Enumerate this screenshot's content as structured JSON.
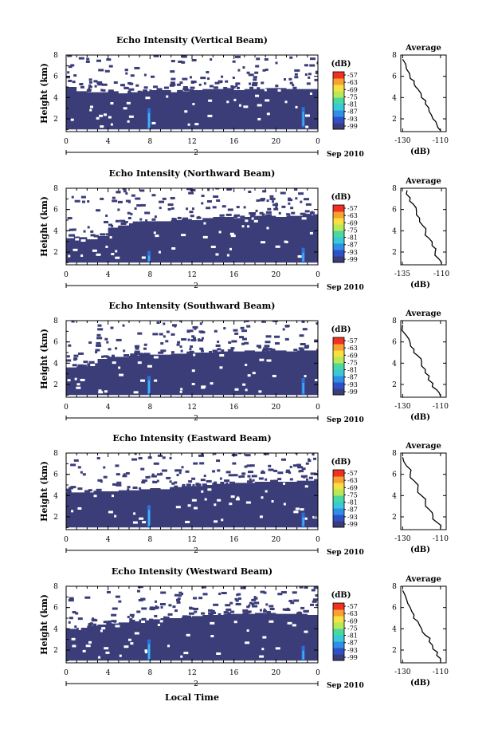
{
  "figure": {
    "ylabel": "Height (km)",
    "xlabel": "Local Time",
    "date_label": "Sep 2010",
    "day_label": "2",
    "colorbar_unit": "(dB)",
    "avg_title": "Average",
    "avg_xlabel": "(dB)"
  },
  "colors": {
    "background": "#3a3d78",
    "echo_bright": "#3fb6f0",
    "colormap": [
      "#3a3d78",
      "#3050c8",
      "#2f8fe8",
      "#38c8d8",
      "#48d8a0",
      "#b8e858",
      "#f8e040",
      "#f8a030",
      "#f03020"
    ]
  },
  "chart_data": [
    {
      "type": "heatmap",
      "title": "Echo Intensity (Vertical Beam)",
      "x_ticks": [
        "0",
        "4",
        "8",
        "12",
        "16",
        "20",
        "0"
      ],
      "y_ticks": [
        "2",
        "4",
        "6",
        "8"
      ],
      "xlim": [
        0,
        24
      ],
      "ylim": [
        0.8,
        8
      ],
      "colorbar_ticks": [
        "-57",
        "-63",
        "-69",
        "-75",
        "-81",
        "-87",
        "-93",
        "-99"
      ],
      "boundary_km": [
        5.0,
        4.6,
        4.5,
        4.5,
        4.6,
        4.4,
        4.5,
        4.6,
        4.7,
        4.7,
        4.5,
        4.6,
        4.7,
        4.8,
        4.8,
        4.9,
        4.7,
        4.8,
        4.8,
        4.9,
        4.9,
        4.8,
        4.8,
        4.8
      ],
      "echo_columns": [
        {
          "time": 7.9,
          "top_km": 3.0,
          "bottom_km": 1.0
        },
        {
          "time": 22.6,
          "top_km": 3.1,
          "bottom_km": 1.2
        }
      ],
      "profile": {
        "x": [
          -110,
          -112,
          -114,
          -116,
          -118,
          -120,
          -122,
          -124,
          -126,
          -128,
          -130
        ],
        "y": [
          0.9,
          1.5,
          2.0,
          2.7,
          3.4,
          4.0,
          4.8,
          5.3,
          5.8,
          6.7,
          7.6
        ],
        "xlim": [
          -131,
          -107
        ],
        "ylim": [
          0.8,
          8
        ],
        "x_ticks": [
          "-130",
          "-110"
        ],
        "y_ticks": [
          "2",
          "4",
          "6",
          "8"
        ]
      }
    },
    {
      "type": "heatmap",
      "title": "Echo Intensity (Northward Beam)",
      "x_ticks": [
        "0",
        "4",
        "8",
        "12",
        "16",
        "20",
        "0"
      ],
      "y_ticks": [
        "2",
        "4",
        "6",
        "8"
      ],
      "xlim": [
        0,
        24
      ],
      "ylim": [
        0.8,
        8
      ],
      "colorbar_ticks": [
        "-57",
        "-63",
        "-69",
        "-75",
        "-81",
        "-87",
        "-93",
        "-99"
      ],
      "boundary_km": [
        3.3,
        3.4,
        3.2,
        3.5,
        4.3,
        4.5,
        4.7,
        4.9,
        4.9,
        4.9,
        5.0,
        5.1,
        5.0,
        5.2,
        5.3,
        5.3,
        5.2,
        5.3,
        5.4,
        5.4,
        5.3,
        5.4,
        5.4,
        5.4
      ],
      "echo_columns": [
        {
          "time": 7.9,
          "top_km": 2.1,
          "bottom_km": 1.0
        },
        {
          "time": 22.6,
          "top_km": 2.4,
          "bottom_km": 1.0
        }
      ],
      "profile": {
        "x": [
          -110,
          -112,
          -114,
          -116,
          -118,
          -120,
          -122,
          -124,
          -126,
          -128,
          -130,
          -132
        ],
        "y": [
          0.9,
          1.4,
          2.0,
          2.6,
          3.3,
          3.9,
          4.5,
          5.2,
          5.8,
          6.5,
          7.1,
          7.8
        ],
        "xlim": [
          -136,
          -107
        ],
        "ylim": [
          0.8,
          8
        ],
        "x_ticks": [
          "-135",
          "-110"
        ],
        "y_ticks": [
          "2",
          "4",
          "6",
          "8"
        ]
      }
    },
    {
      "type": "heatmap",
      "title": "Echo Intensity (Southward Beam)",
      "x_ticks": [
        "0",
        "4",
        "8",
        "12",
        "16",
        "20",
        "0"
      ],
      "y_ticks": [
        "2",
        "4",
        "6",
        "8"
      ],
      "xlim": [
        0,
        24
      ],
      "ylim": [
        0.8,
        8
      ],
      "colorbar_ticks": [
        "-57",
        "-63",
        "-69",
        "-75",
        "-81",
        "-87",
        "-93",
        "-99"
      ],
      "boundary_km": [
        3.6,
        3.7,
        4.0,
        4.4,
        4.6,
        4.6,
        4.7,
        4.8,
        4.8,
        4.8,
        4.9,
        4.9,
        5.0,
        5.0,
        5.1,
        5.1,
        5.1,
        5.2,
        5.1,
        5.2,
        5.2,
        5.1,
        5.2,
        5.2
      ],
      "echo_columns": [
        {
          "time": 7.9,
          "top_km": 2.8,
          "bottom_km": 1.0
        },
        {
          "time": 22.6,
          "top_km": 2.6,
          "bottom_km": 1.0
        }
      ],
      "profile": {
        "x": [
          -110,
          -112,
          -114,
          -116,
          -118,
          -120,
          -122,
          -124,
          -126,
          -128,
          -130
        ],
        "y": [
          0.9,
          1.5,
          2.1,
          2.8,
          3.4,
          4.1,
          4.7,
          5.3,
          5.9,
          6.6,
          7.6
        ],
        "xlim": [
          -131,
          -107
        ],
        "ylim": [
          0.8,
          8
        ],
        "x_ticks": [
          "-130",
          "-110"
        ],
        "y_ticks": [
          "2",
          "4",
          "6",
          "8"
        ]
      }
    },
    {
      "type": "heatmap",
      "title": "Echo Intensity (Eastward Beam)",
      "x_ticks": [
        "0",
        "4",
        "8",
        "12",
        "16",
        "20",
        "0"
      ],
      "y_ticks": [
        "2",
        "4",
        "6",
        "8"
      ],
      "xlim": [
        0,
        24
      ],
      "ylim": [
        0.8,
        8
      ],
      "colorbar_ticks": [
        "-57",
        "-63",
        "-69",
        "-75",
        "-81",
        "-87",
        "-93",
        "-99"
      ],
      "boundary_km": [
        4.3,
        4.3,
        4.3,
        4.4,
        4.4,
        4.5,
        4.5,
        4.6,
        4.7,
        4.6,
        4.8,
        4.9,
        4.9,
        5.0,
        5.1,
        5.1,
        5.2,
        5.2,
        5.3,
        5.3,
        5.3,
        5.3,
        5.4,
        5.4
      ],
      "echo_columns": [
        {
          "time": 7.9,
          "top_km": 3.1,
          "bottom_km": 1.0
        },
        {
          "time": 22.6,
          "top_km": 2.4,
          "bottom_km": 1.0
        }
      ],
      "profile": {
        "x": [
          -110,
          -112,
          -114,
          -116,
          -118,
          -120,
          -122,
          -124,
          -126,
          -128,
          -130
        ],
        "y": [
          0.9,
          1.5,
          2.1,
          2.7,
          3.3,
          4.0,
          4.6,
          5.4,
          6.0,
          6.8,
          7.6
        ],
        "xlim": [
          -131,
          -107
        ],
        "ylim": [
          0.8,
          8
        ],
        "x_ticks": [
          "-130",
          "-110"
        ],
        "y_ticks": [
          "2",
          "4",
          "6",
          "8"
        ]
      }
    },
    {
      "type": "heatmap",
      "title": "Echo Intensity (Westward Beam)",
      "x_ticks": [
        "0",
        "4",
        "8",
        "12",
        "16",
        "20",
        "0"
      ],
      "y_ticks": [
        "2",
        "4",
        "6",
        "8"
      ],
      "xlim": [
        0,
        24
      ],
      "ylim": [
        0.8,
        8
      ],
      "colorbar_ticks": [
        "-57",
        "-63",
        "-69",
        "-75",
        "-81",
        "-87",
        "-93",
        "-99"
      ],
      "boundary_km": [
        4.0,
        4.1,
        4.3,
        4.4,
        4.5,
        4.6,
        4.7,
        4.8,
        4.9,
        5.0,
        5.0,
        5.1,
        5.2,
        5.3,
        5.3,
        5.4,
        5.4,
        5.4,
        5.5,
        5.5,
        5.4,
        5.4,
        5.4,
        5.3
      ],
      "echo_columns": [
        {
          "time": 7.9,
          "top_km": 3.0,
          "bottom_km": 1.0
        },
        {
          "time": 22.6,
          "top_km": 2.4,
          "bottom_km": 1.0
        }
      ],
      "profile": {
        "x": [
          -110,
          -112,
          -114,
          -116,
          -118,
          -120,
          -122,
          -124,
          -126,
          -128,
          -130
        ],
        "y": [
          0.9,
          1.5,
          2.1,
          2.8,
          3.4,
          4.0,
          4.7,
          5.3,
          6.0,
          6.8,
          7.6
        ],
        "xlim": [
          -131,
          -107
        ],
        "ylim": [
          0.8,
          8
        ],
        "x_ticks": [
          "-130",
          "-110"
        ],
        "y_ticks": [
          "2",
          "4",
          "6",
          "8"
        ]
      }
    }
  ]
}
